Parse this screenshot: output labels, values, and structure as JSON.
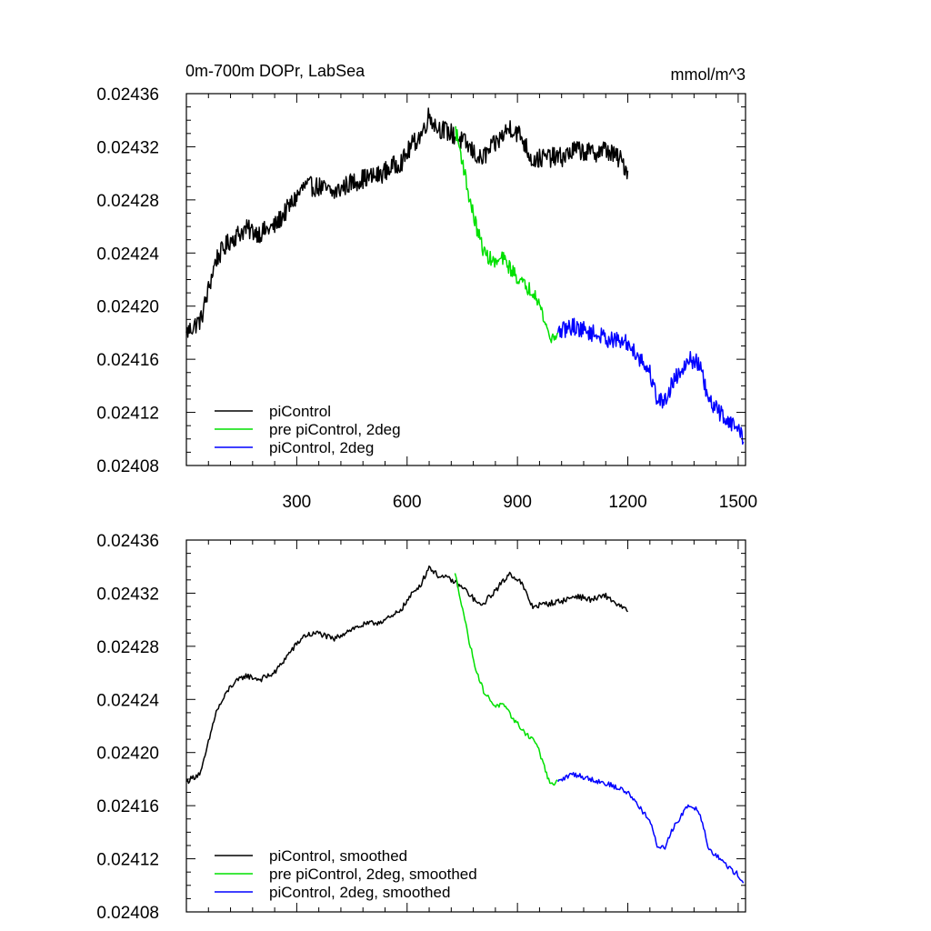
{
  "chart_data": [
    {
      "type": "line",
      "title_left": "0m-700m DOPr, LabSea",
      "title_right": "mmol/m^3",
      "xlabel": "",
      "ylabel": "",
      "xlim": [
        0,
        1520
      ],
      "ylim": [
        0.02408,
        0.02436
      ],
      "x_ticks": [
        300,
        600,
        900,
        1200,
        1500
      ],
      "x_tick_labels": [
        "300",
        "600",
        "900",
        "1200",
        "1500"
      ],
      "y_ticks": [
        0.02408,
        0.02412,
        0.02416,
        0.0242,
        0.02424,
        0.02428,
        0.02432,
        0.02436
      ],
      "y_tick_labels": [
        "0.02408",
        "0.02412",
        "0.02416",
        "0.02420",
        "0.02424",
        "0.02428",
        "0.02432",
        "0.02436"
      ],
      "legend_position": "bottom-left",
      "series": [
        {
          "name": "piControl",
          "color": "#000000",
          "noise": 7.5e-06,
          "points": [
            [
              0,
              0.02418
            ],
            [
              40,
              0.02419
            ],
            [
              80,
              0.024235
            ],
            [
              120,
              0.02425
            ],
            [
              160,
              0.024258
            ],
            [
              200,
              0.024255
            ],
            [
              240,
              0.02426
            ],
            [
              280,
              0.024275
            ],
            [
              320,
              0.02429
            ],
            [
              360,
              0.02429
            ],
            [
              400,
              0.024285
            ],
            [
              440,
              0.024292
            ],
            [
              480,
              0.024296
            ],
            [
              520,
              0.024298
            ],
            [
              560,
              0.024305
            ],
            [
              590,
              0.02431
            ],
            [
              610,
              0.02432
            ],
            [
              640,
              0.02433
            ],
            [
              660,
              0.024344
            ],
            [
              680,
              0.024335
            ],
            [
              720,
              0.02433
            ],
            [
              760,
              0.024322
            ],
            [
              800,
              0.02431
            ],
            [
              840,
              0.024322
            ],
            [
              880,
              0.024335
            ],
            [
              910,
              0.024328
            ],
            [
              940,
              0.02431
            ],
            [
              980,
              0.024312
            ],
            [
              1020,
              0.024312
            ],
            [
              1060,
              0.024318
            ],
            [
              1100,
              0.024315
            ],
            [
              1140,
              0.024318
            ],
            [
              1180,
              0.02431
            ],
            [
              1200,
              0.024302
            ]
          ]
        },
        {
          "name": "pre piControl, 2deg",
          "color": "#00e000",
          "noise": 5.5e-06,
          "points": [
            [
              730,
              0.024335
            ],
            [
              750,
              0.02431
            ],
            [
              770,
              0.02428
            ],
            [
              790,
              0.024258
            ],
            [
              810,
              0.02424
            ],
            [
              840,
              0.024232
            ],
            [
              860,
              0.024236
            ],
            [
              890,
              0.024225
            ],
            [
              920,
              0.024215
            ],
            [
              950,
              0.02421
            ],
            [
              970,
              0.024192
            ],
            [
              990,
              0.024175
            ],
            [
              1010,
              0.02418
            ]
          ]
        },
        {
          "name": "piControl, 2deg",
          "color": "#0000ff",
          "noise": 6.5e-06,
          "points": [
            [
              1010,
              0.02418
            ],
            [
              1050,
              0.024185
            ],
            [
              1100,
              0.02418
            ],
            [
              1150,
              0.024175
            ],
            [
              1200,
              0.024172
            ],
            [
              1230,
              0.024162
            ],
            [
              1260,
              0.02415
            ],
            [
              1280,
              0.02413
            ],
            [
              1300,
              0.024128
            ],
            [
              1320,
              0.024142
            ],
            [
              1340,
              0.02415
            ],
            [
              1360,
              0.02416
            ],
            [
              1390,
              0.024158
            ],
            [
              1400,
              0.02415
            ],
            [
              1420,
              0.024128
            ],
            [
              1450,
              0.02412
            ],
            [
              1480,
              0.024112
            ],
            [
              1500,
              0.024108
            ],
            [
              1515,
              0.0241
            ]
          ]
        }
      ]
    },
    {
      "type": "line",
      "title_left": "",
      "title_right": "",
      "xlabel": "",
      "ylabel": "",
      "xlim": [
        0,
        1520
      ],
      "ylim": [
        0.02408,
        0.02436
      ],
      "x_ticks": [
        300,
        600,
        900,
        1200,
        1500
      ],
      "x_tick_labels": [],
      "y_ticks": [
        0.02408,
        0.02412,
        0.02416,
        0.0242,
        0.02424,
        0.02428,
        0.02432,
        0.02436
      ],
      "y_tick_labels": [
        "0.02408",
        "0.02412",
        "0.02416",
        "0.02420",
        "0.02424",
        "0.02428",
        "0.02432",
        "0.02436"
      ],
      "legend_position": "bottom-left",
      "series": [
        {
          "name": "piControl, smoothed",
          "color": "#000000",
          "noise": 2.2e-06,
          "points": [
            [
              0,
              0.024178
            ],
            [
              40,
              0.024185
            ],
            [
              80,
              0.02423
            ],
            [
              120,
              0.02425
            ],
            [
              160,
              0.024258
            ],
            [
              200,
              0.024255
            ],
            [
              240,
              0.02426
            ],
            [
              280,
              0.024275
            ],
            [
              320,
              0.024288
            ],
            [
              360,
              0.02429
            ],
            [
              400,
              0.024285
            ],
            [
              440,
              0.024292
            ],
            [
              480,
              0.024296
            ],
            [
              520,
              0.024298
            ],
            [
              560,
              0.024302
            ],
            [
              590,
              0.02431
            ],
            [
              610,
              0.024318
            ],
            [
              640,
              0.024328
            ],
            [
              660,
              0.02434
            ],
            [
              680,
              0.024334
            ],
            [
              720,
              0.02433
            ],
            [
              760,
              0.024322
            ],
            [
              800,
              0.02431
            ],
            [
              840,
              0.024322
            ],
            [
              880,
              0.024335
            ],
            [
              910,
              0.024328
            ],
            [
              940,
              0.02431
            ],
            [
              980,
              0.024312
            ],
            [
              1020,
              0.024314
            ],
            [
              1060,
              0.024318
            ],
            [
              1100,
              0.024315
            ],
            [
              1140,
              0.024318
            ],
            [
              1180,
              0.02431
            ],
            [
              1200,
              0.024306
            ]
          ]
        },
        {
          "name": "pre piControl, 2deg, smoothed",
          "color": "#00e000",
          "noise": 1.8e-06,
          "points": [
            [
              730,
              0.024335
            ],
            [
              750,
              0.02431
            ],
            [
              770,
              0.024282
            ],
            [
              790,
              0.02426
            ],
            [
              810,
              0.024245
            ],
            [
              840,
              0.024235
            ],
            [
              860,
              0.024236
            ],
            [
              890,
              0.024225
            ],
            [
              920,
              0.024215
            ],
            [
              950,
              0.024208
            ],
            [
              970,
              0.024192
            ],
            [
              990,
              0.024175
            ],
            [
              1010,
              0.024178
            ]
          ]
        },
        {
          "name": "piControl, 2deg, smoothed",
          "color": "#0000ff",
          "noise": 2e-06,
          "points": [
            [
              1010,
              0.024178
            ],
            [
              1050,
              0.024184
            ],
            [
              1100,
              0.02418
            ],
            [
              1150,
              0.024176
            ],
            [
              1200,
              0.02417
            ],
            [
              1230,
              0.02416
            ],
            [
              1260,
              0.024148
            ],
            [
              1280,
              0.02413
            ],
            [
              1300,
              0.024128
            ],
            [
              1320,
              0.024142
            ],
            [
              1340,
              0.02415
            ],
            [
              1360,
              0.02416
            ],
            [
              1390,
              0.024158
            ],
            [
              1400,
              0.02415
            ],
            [
              1420,
              0.024128
            ],
            [
              1450,
              0.02412
            ],
            [
              1480,
              0.024112
            ],
            [
              1500,
              0.024108
            ],
            [
              1515,
              0.024102
            ]
          ]
        }
      ]
    }
  ]
}
